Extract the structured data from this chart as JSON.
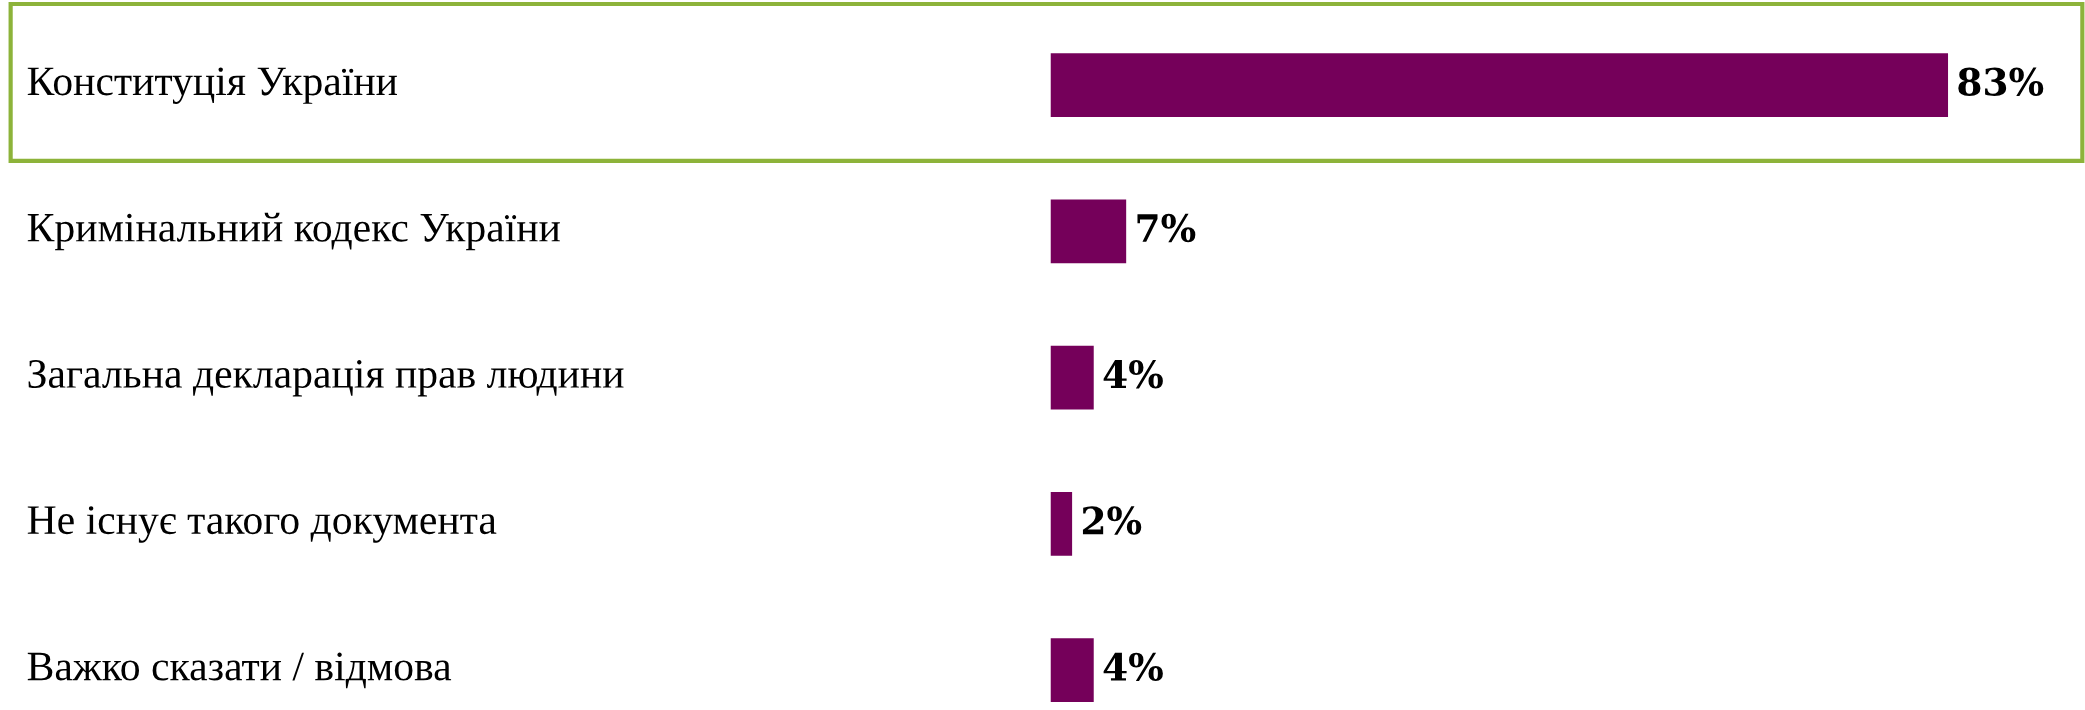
{
  "chart_data": {
    "type": "bar",
    "orientation": "horizontal",
    "categories": [
      "Конституція України",
      "Кримінальний кодекс України",
      "Загальна декларація прав людини",
      "Не існує такого документа",
      "Важко сказати / відмова"
    ],
    "values": [
      83,
      7,
      4,
      2,
      4
    ],
    "color": "#75005a",
    "data_labels": true,
    "value_labels": [
      "83%",
      "7%",
      "4%",
      "2%",
      "4%"
    ]
  }
}
